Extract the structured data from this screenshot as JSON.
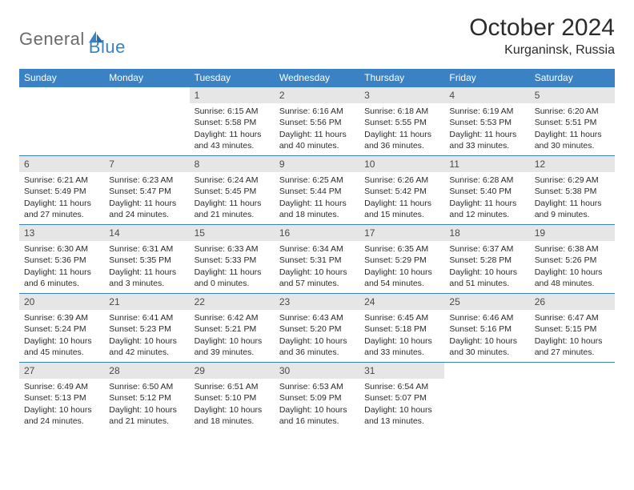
{
  "brand": {
    "part1": "General",
    "part2": "Blue"
  },
  "title": "October 2024",
  "location": "Kurganinsk, Russia",
  "colors": {
    "header_bg": "#3b82c4",
    "header_text": "#ffffff",
    "daynum_bg": "#e6e6e6",
    "daynum_text": "#4a4a4a",
    "border": "#3b82c4",
    "logo_gray": "#6b6b6b",
    "logo_blue": "#3b82c4"
  },
  "weekdays": [
    "Sunday",
    "Monday",
    "Tuesday",
    "Wednesday",
    "Thursday",
    "Friday",
    "Saturday"
  ],
  "weeks": [
    [
      null,
      null,
      {
        "n": "1",
        "sr": "Sunrise: 6:15 AM",
        "ss": "Sunset: 5:58 PM",
        "dl": "Daylight: 11 hours and 43 minutes."
      },
      {
        "n": "2",
        "sr": "Sunrise: 6:16 AM",
        "ss": "Sunset: 5:56 PM",
        "dl": "Daylight: 11 hours and 40 minutes."
      },
      {
        "n": "3",
        "sr": "Sunrise: 6:18 AM",
        "ss": "Sunset: 5:55 PM",
        "dl": "Daylight: 11 hours and 36 minutes."
      },
      {
        "n": "4",
        "sr": "Sunrise: 6:19 AM",
        "ss": "Sunset: 5:53 PM",
        "dl": "Daylight: 11 hours and 33 minutes."
      },
      {
        "n": "5",
        "sr": "Sunrise: 6:20 AM",
        "ss": "Sunset: 5:51 PM",
        "dl": "Daylight: 11 hours and 30 minutes."
      }
    ],
    [
      {
        "n": "6",
        "sr": "Sunrise: 6:21 AM",
        "ss": "Sunset: 5:49 PM",
        "dl": "Daylight: 11 hours and 27 minutes."
      },
      {
        "n": "7",
        "sr": "Sunrise: 6:23 AM",
        "ss": "Sunset: 5:47 PM",
        "dl": "Daylight: 11 hours and 24 minutes."
      },
      {
        "n": "8",
        "sr": "Sunrise: 6:24 AM",
        "ss": "Sunset: 5:45 PM",
        "dl": "Daylight: 11 hours and 21 minutes."
      },
      {
        "n": "9",
        "sr": "Sunrise: 6:25 AM",
        "ss": "Sunset: 5:44 PM",
        "dl": "Daylight: 11 hours and 18 minutes."
      },
      {
        "n": "10",
        "sr": "Sunrise: 6:26 AM",
        "ss": "Sunset: 5:42 PM",
        "dl": "Daylight: 11 hours and 15 minutes."
      },
      {
        "n": "11",
        "sr": "Sunrise: 6:28 AM",
        "ss": "Sunset: 5:40 PM",
        "dl": "Daylight: 11 hours and 12 minutes."
      },
      {
        "n": "12",
        "sr": "Sunrise: 6:29 AM",
        "ss": "Sunset: 5:38 PM",
        "dl": "Daylight: 11 hours and 9 minutes."
      }
    ],
    [
      {
        "n": "13",
        "sr": "Sunrise: 6:30 AM",
        "ss": "Sunset: 5:36 PM",
        "dl": "Daylight: 11 hours and 6 minutes."
      },
      {
        "n": "14",
        "sr": "Sunrise: 6:31 AM",
        "ss": "Sunset: 5:35 PM",
        "dl": "Daylight: 11 hours and 3 minutes."
      },
      {
        "n": "15",
        "sr": "Sunrise: 6:33 AM",
        "ss": "Sunset: 5:33 PM",
        "dl": "Daylight: 11 hours and 0 minutes."
      },
      {
        "n": "16",
        "sr": "Sunrise: 6:34 AM",
        "ss": "Sunset: 5:31 PM",
        "dl": "Daylight: 10 hours and 57 minutes."
      },
      {
        "n": "17",
        "sr": "Sunrise: 6:35 AM",
        "ss": "Sunset: 5:29 PM",
        "dl": "Daylight: 10 hours and 54 minutes."
      },
      {
        "n": "18",
        "sr": "Sunrise: 6:37 AM",
        "ss": "Sunset: 5:28 PM",
        "dl": "Daylight: 10 hours and 51 minutes."
      },
      {
        "n": "19",
        "sr": "Sunrise: 6:38 AM",
        "ss": "Sunset: 5:26 PM",
        "dl": "Daylight: 10 hours and 48 minutes."
      }
    ],
    [
      {
        "n": "20",
        "sr": "Sunrise: 6:39 AM",
        "ss": "Sunset: 5:24 PM",
        "dl": "Daylight: 10 hours and 45 minutes."
      },
      {
        "n": "21",
        "sr": "Sunrise: 6:41 AM",
        "ss": "Sunset: 5:23 PM",
        "dl": "Daylight: 10 hours and 42 minutes."
      },
      {
        "n": "22",
        "sr": "Sunrise: 6:42 AM",
        "ss": "Sunset: 5:21 PM",
        "dl": "Daylight: 10 hours and 39 minutes."
      },
      {
        "n": "23",
        "sr": "Sunrise: 6:43 AM",
        "ss": "Sunset: 5:20 PM",
        "dl": "Daylight: 10 hours and 36 minutes."
      },
      {
        "n": "24",
        "sr": "Sunrise: 6:45 AM",
        "ss": "Sunset: 5:18 PM",
        "dl": "Daylight: 10 hours and 33 minutes."
      },
      {
        "n": "25",
        "sr": "Sunrise: 6:46 AM",
        "ss": "Sunset: 5:16 PM",
        "dl": "Daylight: 10 hours and 30 minutes."
      },
      {
        "n": "26",
        "sr": "Sunrise: 6:47 AM",
        "ss": "Sunset: 5:15 PM",
        "dl": "Daylight: 10 hours and 27 minutes."
      }
    ],
    [
      {
        "n": "27",
        "sr": "Sunrise: 6:49 AM",
        "ss": "Sunset: 5:13 PM",
        "dl": "Daylight: 10 hours and 24 minutes."
      },
      {
        "n": "28",
        "sr": "Sunrise: 6:50 AM",
        "ss": "Sunset: 5:12 PM",
        "dl": "Daylight: 10 hours and 21 minutes."
      },
      {
        "n": "29",
        "sr": "Sunrise: 6:51 AM",
        "ss": "Sunset: 5:10 PM",
        "dl": "Daylight: 10 hours and 18 minutes."
      },
      {
        "n": "30",
        "sr": "Sunrise: 6:53 AM",
        "ss": "Sunset: 5:09 PM",
        "dl": "Daylight: 10 hours and 16 minutes."
      },
      {
        "n": "31",
        "sr": "Sunrise: 6:54 AM",
        "ss": "Sunset: 5:07 PM",
        "dl": "Daylight: 10 hours and 13 minutes."
      },
      null,
      null
    ]
  ]
}
